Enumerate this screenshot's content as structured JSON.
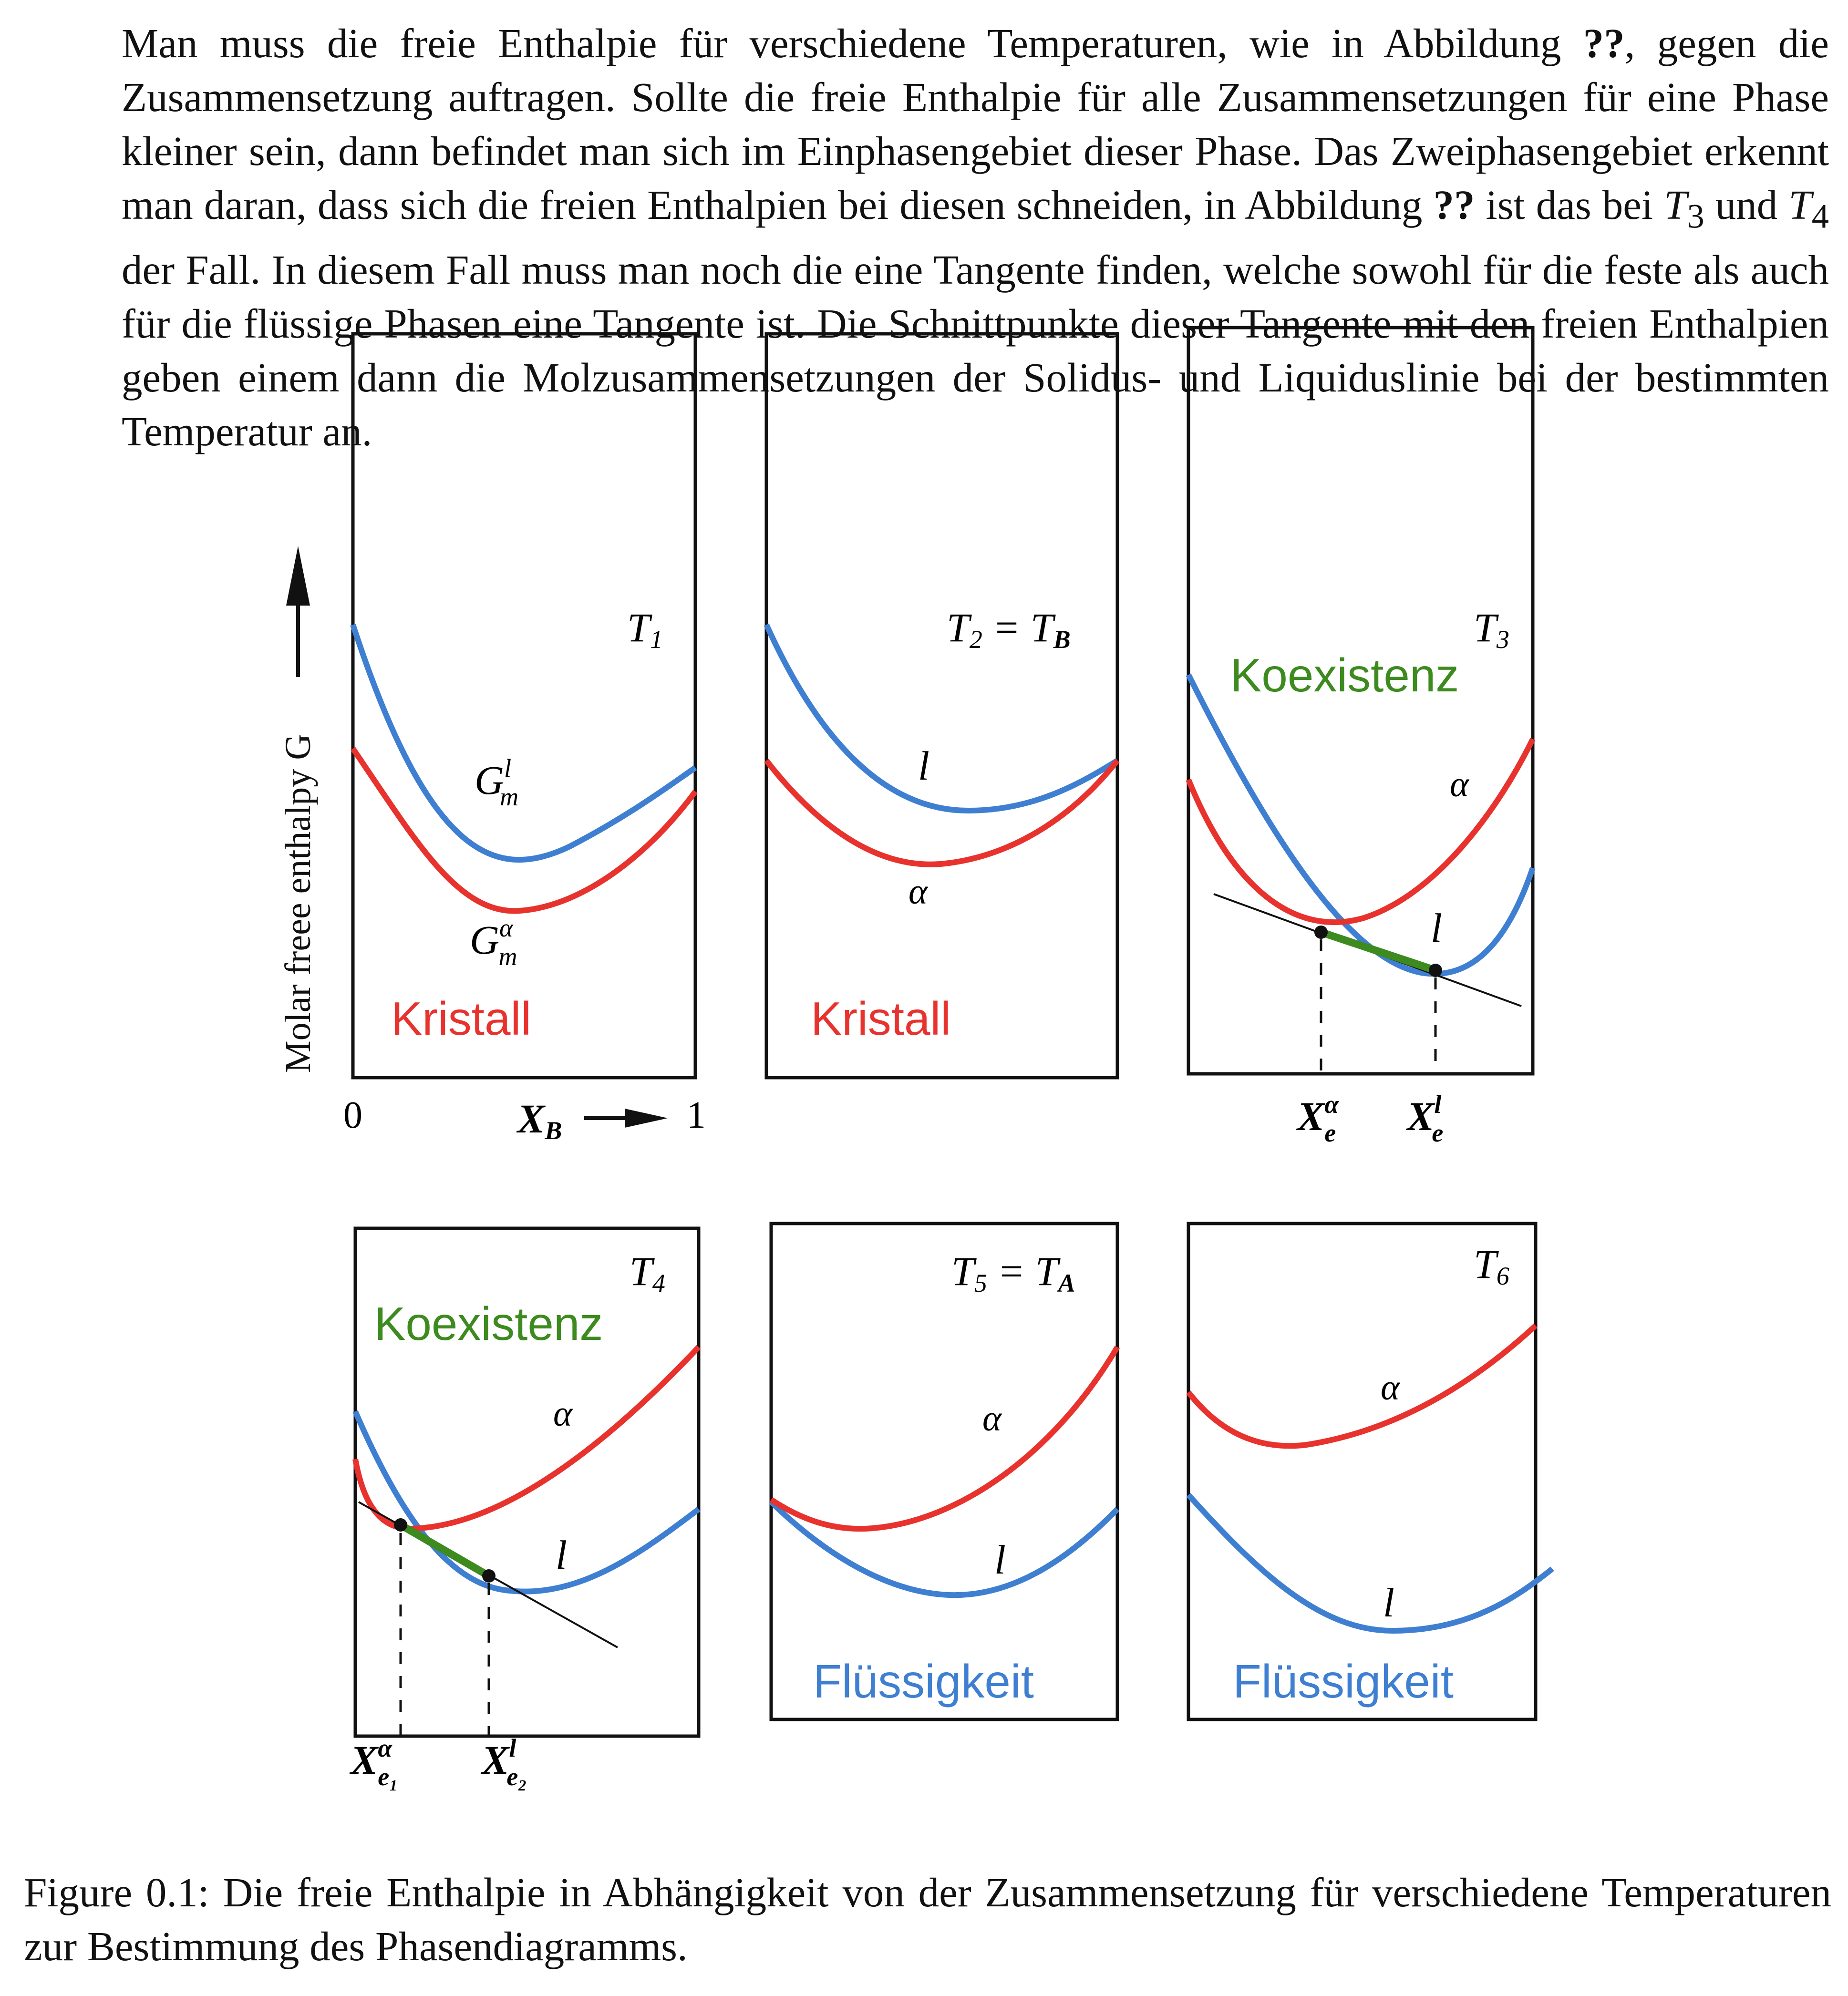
{
  "intro": {
    "s1a": "Man muss die freie Enthalpie für verschiedene Temperaturen, wie in Abbildung ",
    "ref1": "??",
    "s1b": ", gegen die Zusammensetzung auftragen.",
    "s2": " Sollte die freie Enthalpie für alle Zusammensetzungen für eine Phase kleiner sein, dann befindet man sich im Einphasengebiet dieser Phase.",
    "s3a": " Das Zweiphasengebiet erkennt man daran, dass sich die freien Enthalpien bei diesen schneiden, in Abbildung ",
    "ref2": "??",
    "s3b": " ist das bei ",
    "t3": "T",
    "t3sub": "3",
    "und": " und ",
    "t4": "T",
    "t4sub": "4",
    "s3c": " der Fall.",
    "s4": " In diesem Fall muss man noch die eine Tangente finden, welche sowohl für die feste als auch für die flüssige Phasen eine Tangente ist.",
    "s5": " Die Schnittpunkte dieser Tangente mit den freien Enthalpien geben einem dann die Molzusammensetzungen der Solidus- und Liquiduslinie bei der bestimmten Temperatur an."
  },
  "figure": {
    "y_axis_label": "Molar freee enthalpy  G",
    "x_axis_label": "X",
    "x_axis_sub": "B",
    "x_tick_min": "0",
    "x_tick_max": "1",
    "colors": {
      "crystal": "#e8322d",
      "liquid": "#3f7fd1",
      "coexist": "#3d8a1f",
      "frame": "#111111"
    },
    "panels": [
      {
        "id": "p1",
        "title": "T",
        "title_sub": "1",
        "title_rest": "",
        "curve_label_liquid": "G",
        "curve_label_liquid_sup": "l",
        "curve_label_liquid_sub": "m",
        "curve_label_crystal": "G",
        "curve_label_crystal_sup": "α",
        "curve_label_crystal_sub": "m",
        "region": "Kristall"
      },
      {
        "id": "p2",
        "title": "T",
        "title_sub": "2",
        "title_rest": " = T",
        "title_rest_sub": "B",
        "curve_label_liquid": "l",
        "curve_label_crystal": "α",
        "region": "Kristall"
      },
      {
        "id": "p3",
        "title": "T",
        "title_sub": "3",
        "curve_label_liquid": "l",
        "curve_label_crystal": "α",
        "region": "Koexistenz",
        "tick1": "X",
        "tick1_sup": "α",
        "tick1_sub": "e",
        "tick2": "X",
        "tick2_sup": "l",
        "tick2_sub": "e"
      },
      {
        "id": "p4",
        "title": "T",
        "title_sub": "4",
        "curve_label_liquid": "l",
        "curve_label_crystal": "α",
        "region": "Koexistenz",
        "tick1": "X",
        "tick1_sup": "α",
        "tick1_sub": "e₁",
        "tick2": "X",
        "tick2_sup": "l",
        "tick2_sub": "e₂"
      },
      {
        "id": "p5",
        "title": "T",
        "title_sub": "5",
        "title_rest": " = T",
        "title_rest_sub": "A",
        "curve_label_liquid": "l",
        "curve_label_crystal": "α",
        "region": "Flüssigkeit"
      },
      {
        "id": "p6",
        "title": "T",
        "title_sub": "6",
        "curve_label_liquid": "l",
        "curve_label_crystal": "α",
        "region": "Flüssigkeit"
      }
    ]
  },
  "caption": {
    "label": "Figure 0.1:",
    "text": " Die freie Enthalpie in Abhängigkeit von der Zusammensetzung für verschiedene Temperaturen zur Bestimmung des Phasendiagramms."
  }
}
